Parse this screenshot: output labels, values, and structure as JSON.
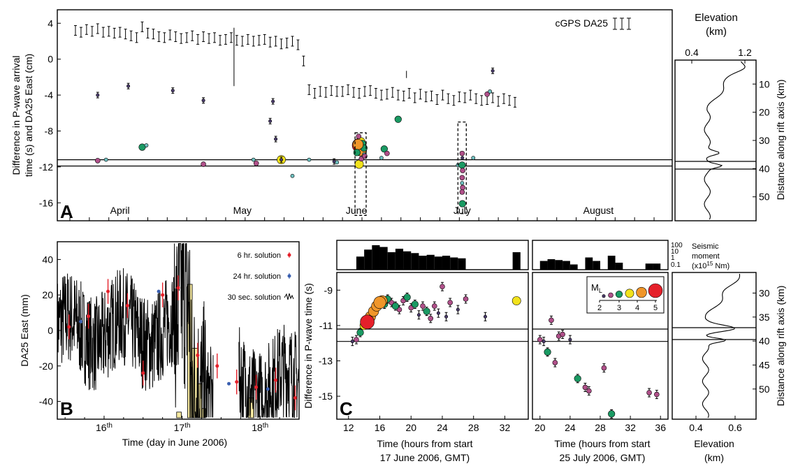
{
  "colors": {
    "ml2": "#4a3b6b",
    "ml25": "#b0508a",
    "ml3": "#1a9a63",
    "ml35": "#f2e21c",
    "ml4": "#f0962a",
    "ml5": "#e5202a",
    "teal": "#6fc0c0",
    "gps_red": "#e5202a",
    "gps_blue": "#3a5fb0",
    "hist": "#000000",
    "yellow_bar": "#f6e9a0"
  },
  "panelA": {
    "letter": "A",
    "ylabel_line1": "Difference in P-wave arrival",
    "ylabel_line2": "time (s) and DA25 East (cm)",
    "legend": "cGPS DA25",
    "yticks": [
      "4",
      "0",
      "-4",
      "-8",
      "-12",
      "-16"
    ],
    "ytick_values": [
      4,
      0,
      -4,
      -8,
      -12,
      -16
    ],
    "ylim": [
      -18,
      5.5
    ],
    "xlim": [
      0,
      162
    ],
    "months": [
      {
        "label": "April",
        "x": 18
      },
      {
        "label": "May",
        "x": 62
      },
      {
        "label": "June",
        "x": 103
      },
      {
        "label": "July",
        "x": 141
      },
      {
        "label": "August",
        "x": 190
      }
    ],
    "hlines": [
      -11.2,
      -11.9
    ],
    "boxes": [
      {
        "x0": 102.5,
        "x1": 106.5,
        "y0": -17.4,
        "y1": -8.2
      },
      {
        "x0": 139.5,
        "x1": 142.5,
        "y0": -17.2,
        "y1": -7.0
      }
    ]
  },
  "panelA_right": {
    "title_line1": "Elevation",
    "title_line2": "(km)",
    "xticks": [
      "0.4",
      "1.2"
    ],
    "ylabel": "Distance along rift axis (km)",
    "yticks": [
      "10",
      "20",
      "30",
      "40",
      "50"
    ],
    "ytick_values": [
      10,
      20,
      30,
      40,
      50
    ]
  },
  "panelB": {
    "letter": "B",
    "ylabel": "DA25 East (mm)",
    "xlabel": "Time (day in June 2006)",
    "yticks": [
      "40",
      "20",
      "0",
      "-20",
      "-40"
    ],
    "ytick_values": [
      40,
      20,
      0,
      -20,
      -40
    ],
    "ylim": [
      -50,
      50
    ],
    "xlim": [
      15.4,
      18.5
    ],
    "xticks": [
      {
        "label": "16",
        "sup": "th",
        "x": 16
      },
      {
        "label": "17",
        "sup": "th",
        "x": 17
      },
      {
        "label": "18",
        "sup": "th",
        "x": 18
      }
    ],
    "legend": [
      "6 hr. solution",
      "24 hr. solution",
      "30 sec. solution"
    ]
  },
  "panelC": {
    "letter": "C",
    "ylabel": "Difference in P-wave time (s)",
    "yticks": [
      "-9",
      "-11",
      "-13",
      "-15"
    ],
    "ytick_values": [
      -9,
      -11,
      -13,
      -15
    ],
    "ylim": [
      -16.3,
      -8.0
    ],
    "left": {
      "xlabel_line1": "Time (hours from start",
      "xlabel_line2": "17 June 2006, GMT)",
      "xticks": [
        "12",
        "16",
        "20",
        "24",
        "28",
        "32"
      ],
      "xtick_values": [
        12,
        16,
        20,
        24,
        28,
        32
      ],
      "xlim": [
        10.5,
        35
      ]
    },
    "right": {
      "xlabel_line1": "Time (hours from start",
      "xlabel_line2": "25 July 2006, GMT)",
      "xticks": [
        "20",
        "24",
        "28",
        "32",
        "36"
      ],
      "xtick_values": [
        20,
        24,
        28,
        32,
        36
      ],
      "xlim": [
        19,
        37
      ]
    },
    "moment_ticks": [
      "100",
      "10",
      "1",
      "0.1"
    ],
    "moment_label_line1": "Seismic",
    "moment_label_line2": "moment",
    "moment_label_line3": "(x10",
    "moment_label_sup": "15",
    "moment_label_line3b": " Nm)",
    "ml_legend_label": "M",
    "ml_legend_sub": "L",
    "ml_legend_ticks": [
      "2",
      "3",
      "4",
      "5"
    ],
    "right_elev": {
      "ylabel": "Distance along rift axis (km)",
      "yticks": [
        "30",
        "35",
        "40",
        "45",
        "50"
      ],
      "ytick_values": [
        30,
        35,
        40,
        45,
        50
      ],
      "xticks": [
        "0.4",
        "0.6"
      ],
      "xlabel_line1": "Elevation",
      "xlabel_line2": "(km)"
    }
  },
  "chart_data": [
    {
      "type": "scatter",
      "title": "",
      "ylabel": "Difference in P-wave arrival time (s) and DA25 East (cm)",
      "series": [
        {
          "name": "cGPS DA25",
          "x": [
            2,
            4,
            6,
            8,
            10,
            12,
            14,
            16,
            18,
            20,
            22,
            24,
            26,
            28,
            30,
            32,
            34,
            36,
            38,
            40,
            42,
            44,
            46,
            48,
            50,
            52,
            54,
            56,
            58,
            60,
            62,
            64,
            66,
            68,
            70,
            72,
            74,
            76,
            78,
            80,
            82,
            84,
            86,
            88,
            90,
            92,
            94,
            96,
            98,
            100,
            102,
            104,
            106,
            108,
            110,
            112,
            114,
            116,
            118,
            120,
            122,
            124,
            126,
            128,
            130,
            132,
            134,
            136,
            138,
            140,
            142,
            144,
            146,
            148,
            150,
            152,
            154,
            156,
            158,
            160
          ],
          "y": [
            3.2,
            3.0,
            3.3,
            3.1,
            3.4,
            3.0,
            3.1,
            2.9,
            3.0,
            2.8,
            2.6,
            2.4,
            3.6,
            2.9,
            2.8,
            2.5,
            2.4,
            2.7,
            2.5,
            2.3,
            2.4,
            2.6,
            2.2,
            2.5,
            2.3,
            2.4,
            2.1,
            2.2,
            2.4,
            2.1,
            2.0,
            2.2,
            2.0,
            2.1,
            2.2,
            1.9,
            2.0,
            1.7,
            1.8,
            2.0,
            1.6,
            -0.2,
            -3.4,
            -3.8,
            -3.6,
            -3.7,
            -3.5,
            -3.6,
            -3.6,
            -3.4,
            -3.7,
            -3.8,
            -3.6,
            -3.5,
            -3.8,
            -4.0,
            -3.9,
            -3.7,
            -4.0,
            -4.1,
            -3.8,
            -4.3,
            -3.9,
            -4.2,
            -4.1,
            -4.5,
            -4.0,
            -4.4,
            -4.6,
            -4.2,
            -4.3,
            -4.0,
            -4.4,
            -4.6,
            -4.5,
            -4.3,
            -4.7,
            -4.4,
            -4.6,
            -4.8
          ]
        }
      ]
    },
    {
      "type": "line",
      "title": "",
      "xlabel": "Time (day in June 2006)",
      "ylabel": "DA25 East (mm)",
      "series": [
        {
          "name": "6 hr. solution",
          "x": [
            15.55,
            15.8,
            16.05,
            16.3,
            16.5,
            16.75,
            16.95,
            17.2,
            17.45,
            17.7,
            17.95,
            18.2,
            18.45
          ],
          "y": [
            2,
            8,
            22,
            14,
            -24,
            20,
            24,
            -14,
            -20,
            -29,
            -32,
            -28,
            -38
          ]
        },
        {
          "name": "24 hr. solution",
          "x": [
            15.7,
            16.7,
            17.6,
            18.1
          ],
          "y": [
            5,
            22,
            -30,
            -33
          ]
        }
      ]
    },
    {
      "type": "scatter",
      "title": "",
      "ylabel": "Difference in P-wave time (s)",
      "series": [
        {
          "name": "17 June 2006",
          "x": [
            12.5,
            13,
            13.5,
            14,
            14.4,
            14.8,
            15.2,
            15.6,
            16,
            16.3,
            16.6,
            17,
            17.5,
            18,
            18.5,
            19,
            19.5,
            20,
            20.5,
            21,
            21.5,
            22,
            22.5,
            23,
            23.5,
            24,
            24.5,
            25,
            26,
            27,
            29.5,
            33.5
          ],
          "y": [
            -11.9,
            -11.8,
            -11.4,
            -11.0,
            -10.8,
            -10.5,
            -10.2,
            -9.9,
            -9.7,
            -9.6,
            -9.8,
            -9.5,
            -9.7,
            -9.9,
            -10.1,
            -9.6,
            -9.4,
            -10.0,
            -9.8,
            -10.4,
            -9.9,
            -10.2,
            -10.6,
            -9.9,
            -10.3,
            -8.8,
            -10.5,
            -9.7,
            -10.1,
            -9.5,
            -10.5,
            -9.6
          ],
          "ml": [
            2,
            2.5,
            3,
            3.5,
            5,
            4,
            4,
            4,
            4.5,
            4,
            3,
            3,
            2.5,
            3,
            2.5,
            2.5,
            3,
            2.5,
            3,
            2,
            2.5,
            3,
            2.5,
            2.5,
            2,
            2.5,
            2,
            2.5,
            2,
            2.5,
            2,
            3.5
          ]
        },
        {
          "name": "25 July 2006",
          "x": [
            20,
            20.5,
            21,
            21.5,
            22,
            22.5,
            23,
            24,
            25,
            26,
            26.5,
            28.5,
            29.5,
            34.5,
            35.5
          ],
          "y": [
            -11.8,
            -11.9,
            -12.5,
            -10.7,
            -13.1,
            -11.6,
            -11.5,
            -11.8,
            -14.0,
            -14.5,
            -14.7,
            -13.4,
            -16.0,
            -14.8,
            -14.9
          ],
          "ml": [
            2.5,
            2,
            3,
            2.5,
            2.5,
            2.5,
            2.5,
            2,
            3,
            2.5,
            2.5,
            2.5,
            3,
            2.5,
            2.5
          ]
        }
      ]
    }
  ]
}
